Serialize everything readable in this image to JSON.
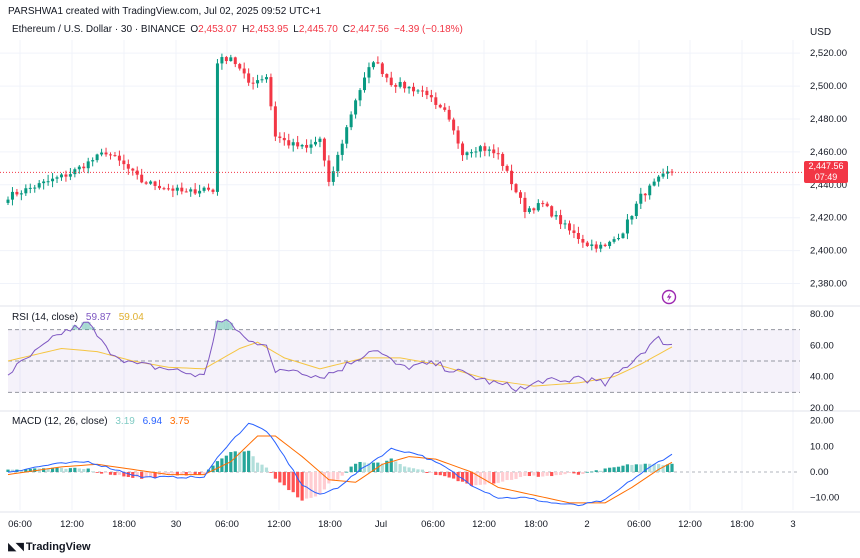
{
  "header": {
    "creator": "PARSHWA1 created with TradingView.com, Jul 02, 2025 09:52 UTC+1",
    "symbol": "Ethereum / U.S. Dollar · 30 · BINANCE",
    "o_label": "O",
    "o_value": "2,453.07",
    "h_label": "H",
    "h_value": "2,453.95",
    "l_label": "L",
    "l_value": "2,445.70",
    "c_label": "C",
    "c_value": "2,447.56",
    "change": "−4.39 (−0.18%)",
    "currency": "USD"
  },
  "price_tag": {
    "price": "2,447.56",
    "countdown": "07:49"
  },
  "rsi_legend": {
    "name": "RSI (14, close)",
    "value": "59.87",
    "ma_value": "59.04"
  },
  "macd_legend": {
    "name": "MACD (12, 26, close)",
    "hist_value": "3.19",
    "macd_value": "6.94",
    "signal_value": "3.75"
  },
  "branding": {
    "logo_text": "TradingView"
  },
  "colors": {
    "up": "#089981",
    "down": "#f23645",
    "rsi": "#7e57c2",
    "rsi_ma": "#f5c542",
    "macd": "#2962ff",
    "signal": "#ff6d00",
    "grid": "#f0f3fa"
  },
  "chart_data": [
    {
      "type": "candlestick",
      "title": "Ethereum / U.S. Dollar · 30 · BINANCE",
      "ylabel": "USD",
      "ylim": [
        2370,
        2528
      ],
      "y_ticks": [
        "2,380.00",
        "2,400.00",
        "2,420.00",
        "2,440.00",
        "2,460.00",
        "2,480.00",
        "2,500.00",
        "2,520.00"
      ],
      "x_ticks": [
        "06:00",
        "12:00",
        "18:00",
        "30",
        "06:00",
        "12:00",
        "18:00",
        "Jul",
        "06:00",
        "12:00",
        "18:00",
        "2",
        "06:00",
        "12:00",
        "18:00",
        "3"
      ],
      "last_close": 2447.56,
      "grid": true,
      "anchors": [
        [
          0,
          2433
        ],
        [
          14,
          2447
        ],
        [
          22,
          2460
        ],
        [
          26,
          2452
        ],
        [
          30,
          2442
        ],
        [
          36,
          2438
        ],
        [
          40,
          2435
        ],
        [
          44,
          2438
        ],
        [
          46,
          2436
        ],
        [
          47,
          2515
        ],
        [
          50,
          2518
        ],
        [
          54,
          2502
        ],
        [
          58,
          2506
        ],
        [
          60,
          2470
        ],
        [
          63,
          2465
        ],
        [
          67,
          2462
        ],
        [
          70,
          2468
        ],
        [
          72,
          2440
        ],
        [
          78,
          2492
        ],
        [
          82,
          2516
        ],
        [
          86,
          2502
        ],
        [
          90,
          2499
        ],
        [
          94,
          2496
        ],
        [
          96,
          2487
        ],
        [
          98,
          2484
        ],
        [
          102,
          2460
        ],
        [
          106,
          2463
        ],
        [
          110,
          2458
        ],
        [
          116,
          2425
        ],
        [
          120,
          2428
        ],
        [
          126,
          2412
        ],
        [
          130,
          2404
        ],
        [
          134,
          2402
        ],
        [
          138,
          2412
        ],
        [
          142,
          2433
        ],
        [
          146,
          2443
        ],
        [
          149,
          2449
        ]
      ]
    },
    {
      "type": "line",
      "title": "RSI (14, close)",
      "ylim": [
        20,
        80
      ],
      "y_ticks": [
        "20.00",
        "40.00",
        "60.00",
        "80.00"
      ],
      "band": [
        30,
        70
      ],
      "series": [
        {
          "name": "RSI",
          "anchors": [
            [
              0,
              42
            ],
            [
              12,
              68
            ],
            [
              18,
              74
            ],
            [
              22,
              58
            ],
            [
              28,
              48
            ],
            [
              36,
              45
            ],
            [
              44,
              40
            ],
            [
              47,
              75
            ],
            [
              50,
              74
            ],
            [
              54,
              62
            ],
            [
              58,
              62
            ],
            [
              60,
              42
            ],
            [
              64,
              45
            ],
            [
              70,
              40
            ],
            [
              74,
              44
            ],
            [
              82,
              58
            ],
            [
              88,
              46
            ],
            [
              96,
              48
            ],
            [
              102,
              42
            ],
            [
              110,
              35
            ],
            [
              116,
              32
            ],
            [
              120,
              38
            ],
            [
              124,
              36
            ],
            [
              128,
              40
            ],
            [
              134,
              35
            ],
            [
              140,
              50
            ],
            [
              144,
              60
            ],
            [
              146,
              64
            ],
            [
              149,
              60
            ]
          ]
        },
        {
          "name": "RSI MA",
          "anchors": [
            [
              0,
              50
            ],
            [
              12,
              58
            ],
            [
              20,
              56
            ],
            [
              28,
              50
            ],
            [
              36,
              46
            ],
            [
              44,
              45
            ],
            [
              52,
              58
            ],
            [
              56,
              62
            ],
            [
              62,
              52
            ],
            [
              70,
              45
            ],
            [
              80,
              52
            ],
            [
              88,
              52
            ],
            [
              96,
              48
            ],
            [
              108,
              38
            ],
            [
              118,
              34
            ],
            [
              128,
              36
            ],
            [
              136,
              40
            ],
            [
              142,
              48
            ],
            [
              149,
              59
            ]
          ]
        }
      ]
    },
    {
      "type": "line",
      "title": "MACD (12, 26, close)",
      "ylim": [
        -14,
        21
      ],
      "y_ticks": [
        "−10.00",
        "0.00",
        "10.00",
        "20.00"
      ],
      "series": [
        {
          "name": "MACD",
          "anchors": [
            [
              0,
              0
            ],
            [
              10,
              3
            ],
            [
              18,
              4
            ],
            [
              24,
              1
            ],
            [
              30,
              -2
            ],
            [
              36,
              -2
            ],
            [
              44,
              -2
            ],
            [
              48,
              8
            ],
            [
              54,
              19
            ],
            [
              58,
              16
            ],
            [
              62,
              6
            ],
            [
              66,
              -5
            ],
            [
              70,
              -9
            ],
            [
              74,
              -6
            ],
            [
              80,
              2
            ],
            [
              86,
              9
            ],
            [
              92,
              7
            ],
            [
              98,
              2
            ],
            [
              104,
              -5
            ],
            [
              110,
              -10
            ],
            [
              116,
              -10
            ],
            [
              122,
              -12
            ],
            [
              128,
              -13
            ],
            [
              134,
              -11
            ],
            [
              140,
              -3
            ],
            [
              146,
              4
            ],
            [
              149,
              6.9
            ]
          ]
        },
        {
          "name": "Signal",
          "anchors": [
            [
              0,
              -1
            ],
            [
              12,
              2
            ],
            [
              20,
              3
            ],
            [
              28,
              1
            ],
            [
              36,
              -1
            ],
            [
              44,
              -1
            ],
            [
              50,
              4
            ],
            [
              56,
              14
            ],
            [
              60,
              14
            ],
            [
              66,
              6
            ],
            [
              72,
              -3
            ],
            [
              78,
              -4
            ],
            [
              84,
              3
            ],
            [
              90,
              6
            ],
            [
              96,
              5
            ],
            [
              104,
              0
            ],
            [
              110,
              -6
            ],
            [
              118,
              -9
            ],
            [
              126,
              -12
            ],
            [
              134,
              -12
            ],
            [
              140,
              -6
            ],
            [
              146,
              1
            ],
            [
              149,
              3.75
            ]
          ]
        },
        {
          "name": "Histogram",
          "value": 3.19
        }
      ]
    }
  ]
}
